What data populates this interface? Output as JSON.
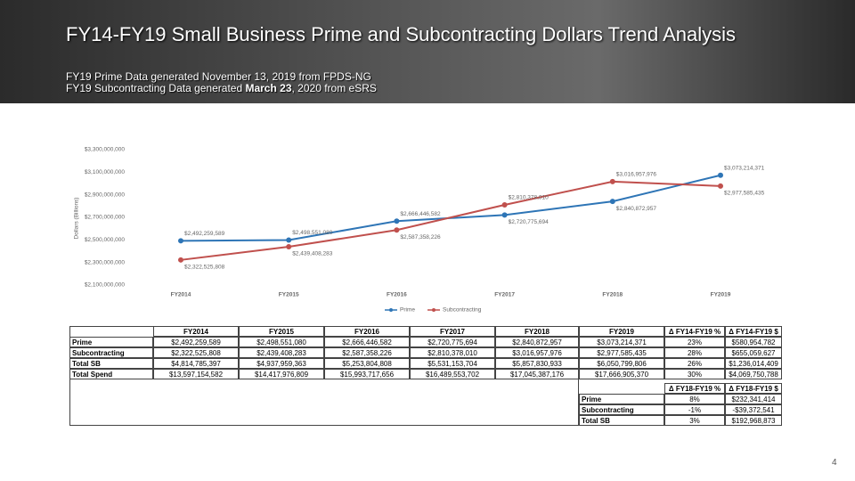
{
  "header": {
    "title": "FY14-FY19 Small Business Prime and Subcontracting Dollars Trend Analysis",
    "subtitle_1": "FY19 Prime Data generated November 13, 2019 from FPDS-NG",
    "subtitle_2": {
      "before": "FY19 Subcontracting Data generated ",
      "bold": "March 23",
      "after": ", 2020 from eSRS"
    }
  },
  "chart_data": {
    "type": "line",
    "y_label": "Dollars (Billions)",
    "categories": [
      "FY2014",
      "FY2015",
      "FY2016",
      "FY2017",
      "FY2018",
      "FY2019"
    ],
    "series": [
      {
        "name": "Prime",
        "color": "#2e75b6",
        "values": [
          2492259589,
          2498551080,
          2666446582,
          2720775694,
          2840872957,
          3073214371
        ],
        "value_labels": [
          "$2,492,259,589",
          "$2,498,551,080",
          "$2,666,446,582",
          "$2,720,775,694",
          "$2,840,872,957",
          "$3,073,214,371"
        ]
      },
      {
        "name": "Subcontracting",
        "color": "#c0504d",
        "values": [
          2322525808,
          2439408283,
          2587358226,
          2810378010,
          3016957976,
          2977585435
        ],
        "value_labels": [
          "$2,322,525,808",
          "$2,439,408,283",
          "$2,587,358,226",
          "$2,810,378,010",
          "$3,016,957,976",
          "$2,977,585,435"
        ]
      }
    ],
    "ylim": [
      2100000000,
      3300000000
    ],
    "yticks": [
      {
        "value": 2100000000,
        "label": "$2,100,000,000"
      },
      {
        "value": 2300000000,
        "label": "$2,300,000,000"
      },
      {
        "value": 2500000000,
        "label": "$2,500,000,000"
      },
      {
        "value": 2700000000,
        "label": "$2,700,000,000"
      },
      {
        "value": 2900000000,
        "label": "$2,900,000,000"
      },
      {
        "value": 3100000000,
        "label": "$3,100,000,000"
      },
      {
        "value": 3300000000,
        "label": "$3,300,000,000"
      }
    ],
    "grid": false,
    "legend": "bottom"
  },
  "table": {
    "columns": [
      "FY2014",
      "FY2015",
      "FY2016",
      "FY2017",
      "FY2018",
      "FY2019",
      "Δ FY14-FY19 %",
      "Δ FY14-FY19 $"
    ],
    "rows": [
      [
        "Prime",
        "$2,492,259,589",
        "$2,498,551,080",
        "$2,666,446,582",
        "$2,720,775,694",
        "$2,840,872,957",
        "$3,073,214,371",
        "23%",
        "$580,954,782"
      ],
      [
        "Subcontracting",
        "$2,322,525,808",
        "$2,439,408,283",
        "$2,587,358,226",
        "$2,810,378,010",
        "$3,016,957,976",
        "$2,977,585,435",
        "28%",
        "$655,059,627"
      ],
      [
        "Total SB",
        "$4,814,785,397",
        "$4,937,959,363",
        "$5,253,804,808",
        "$5,531,153,704",
        "$5,857,830,933",
        "$6,050,799,806",
        "26%",
        "$1,236,014,409"
      ],
      [
        "Total Spend",
        "$13,597,154,582",
        "$14,417,976,809",
        "$15,993,717,656",
        "$16,489,553,702",
        "$17,045,387,176",
        "$17,666,905,370",
        "30%",
        "$4,069,750,788"
      ]
    ]
  },
  "table2": {
    "columns": [
      "Δ FY18-FY19 %",
      "Δ FY18-FY19 $"
    ],
    "rows": [
      [
        "Prime",
        "8%",
        "$232,341,414"
      ],
      [
        "Subcontracting",
        "-1%",
        "-$39,372,541"
      ],
      [
        "Total SB",
        "3%",
        "$192,968,873"
      ]
    ]
  },
  "page_number": "4"
}
